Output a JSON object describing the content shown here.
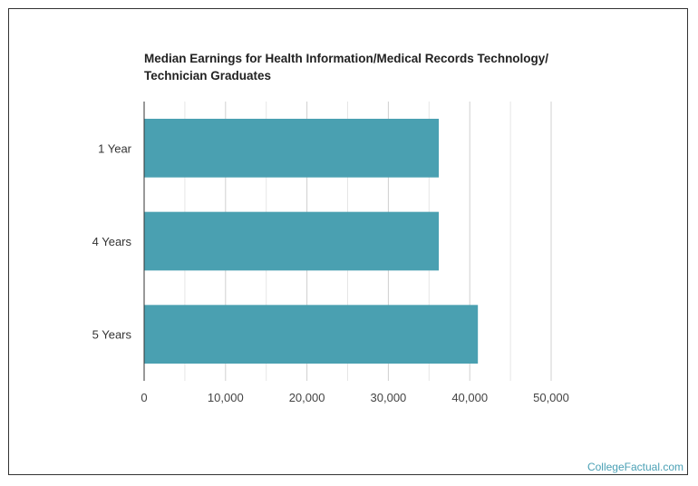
{
  "chart_data": {
    "type": "bar",
    "orientation": "horizontal",
    "title_lines": [
      "Median Earnings for Health Information/Medical Records Technology/",
      "Technician Graduates"
    ],
    "categories": [
      "1 Year",
      "4 Years",
      "5 Years"
    ],
    "values": [
      36200,
      36200,
      41000
    ],
    "xlim": [
      0,
      50000
    ],
    "x_ticks": [
      0,
      10000,
      20000,
      30000,
      40000,
      50000
    ],
    "x_tick_labels": [
      "0",
      "10,000",
      "20,000",
      "30,000",
      "40,000",
      "50,000"
    ],
    "bar_color": "#4aa0b1",
    "grid": true
  },
  "source_label": "CollegeFactual.com"
}
